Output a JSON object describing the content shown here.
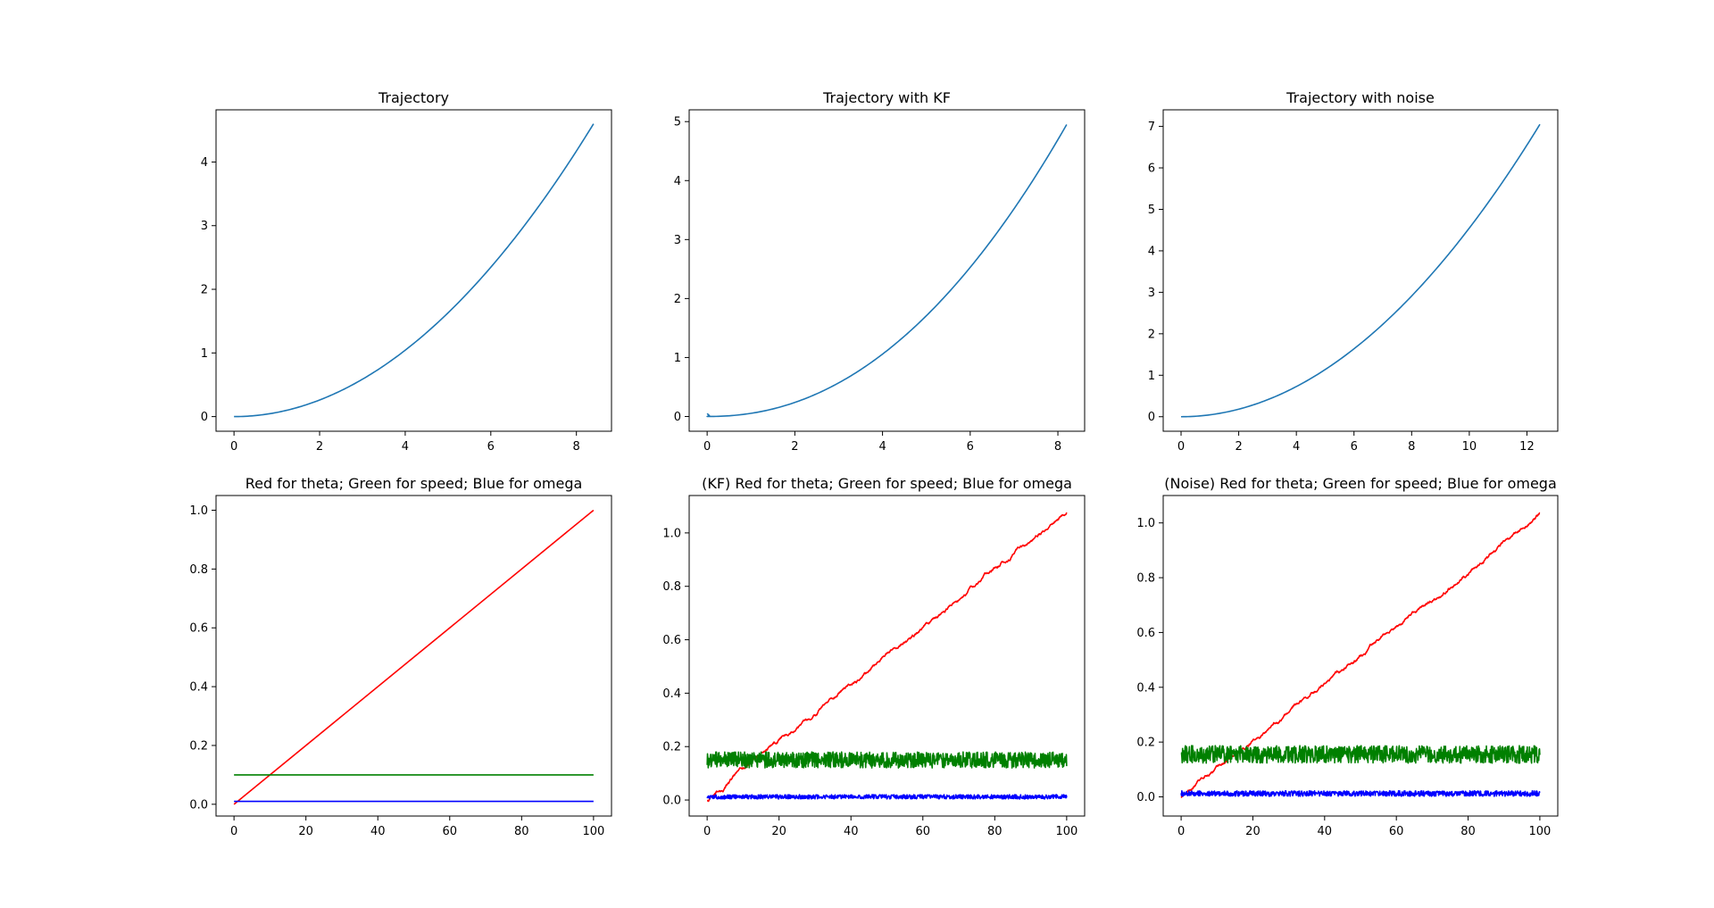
{
  "chart_data": [
    {
      "type": "line",
      "title": "Trajectory",
      "xlim": [
        -0.42,
        8.82
      ],
      "ylim": [
        -0.23,
        4.82
      ],
      "xticks": [
        0,
        2,
        4,
        6,
        8
      ],
      "yticks": [
        0,
        1,
        2,
        3,
        4
      ],
      "series": [
        {
          "color": "#1f77b4",
          "kind": "power",
          "x_end": 8.4,
          "y_end": 4.6,
          "exponent": 2,
          "noise": 0
        }
      ]
    },
    {
      "type": "line",
      "title": "Trajectory with KF",
      "xlim": [
        -0.41,
        8.61
      ],
      "ylim": [
        -0.25,
        5.2
      ],
      "xticks": [
        0,
        2,
        4,
        6,
        8
      ],
      "yticks": [
        0,
        1,
        2,
        3,
        4,
        5
      ],
      "series": [
        {
          "color": "#1f77b4",
          "kind": "power",
          "x_end": 8.2,
          "y_end": 4.95,
          "exponent": 2.15,
          "noise": 0,
          "start_hook": true
        }
      ]
    },
    {
      "type": "line",
      "title": "Trajectory with noise",
      "xlim": [
        -0.62,
        13.07
      ],
      "ylim": [
        -0.35,
        7.4
      ],
      "xticks": [
        0,
        2,
        4,
        6,
        8,
        10,
        12
      ],
      "yticks": [
        0,
        1,
        2,
        3,
        4,
        5,
        6,
        7
      ],
      "series": [
        {
          "color": "#1f77b4",
          "kind": "power",
          "x_end": 12.45,
          "y_end": 7.05,
          "exponent": 2,
          "noise": 0
        }
      ]
    },
    {
      "type": "line",
      "title": "Red for theta; Green for speed; Blue for omega",
      "xlim": [
        -5,
        105
      ],
      "ylim": [
        -0.04,
        1.05
      ],
      "xticks": [
        0,
        20,
        40,
        60,
        80,
        100
      ],
      "yticks": [
        0.0,
        0.2,
        0.4,
        0.6,
        0.8,
        1.0
      ],
      "series": [
        {
          "color": "#ff0000",
          "kind": "linear",
          "y0": 0.0,
          "y1": 1.0,
          "noise": 0
        },
        {
          "color": "#008000",
          "kind": "const",
          "y0": 0.1,
          "noise": 0
        },
        {
          "color": "#0000ff",
          "kind": "const",
          "y0": 0.01,
          "noise": 0
        }
      ]
    },
    {
      "type": "line",
      "title": "(KF) Red for theta; Green for speed; Blue for omega",
      "xlim": [
        -5,
        105
      ],
      "ylim": [
        -0.06,
        1.14
      ],
      "xticks": [
        0,
        20,
        40,
        60,
        80,
        100
      ],
      "yticks": [
        0.0,
        0.2,
        0.4,
        0.6,
        0.8,
        1.0
      ],
      "series": [
        {
          "color": "#ff0000",
          "kind": "linear",
          "y0": 0.0,
          "y1": 1.08,
          "noise": 0.006
        },
        {
          "color": "#008000",
          "kind": "const",
          "y0": 0.15,
          "noise": 0.03
        },
        {
          "color": "#0000ff",
          "kind": "const",
          "y0": 0.012,
          "noise": 0.008
        }
      ]
    },
    {
      "type": "line",
      "title": "(Noise) Red for theta; Green for speed; Blue for omega",
      "xlim": [
        -5,
        105
      ],
      "ylim": [
        -0.07,
        1.1
      ],
      "xticks": [
        0,
        20,
        40,
        60,
        80,
        100
      ],
      "yticks": [
        0.0,
        0.2,
        0.4,
        0.6,
        0.8,
        1.0
      ],
      "series": [
        {
          "color": "#ff0000",
          "kind": "linear",
          "y0": 0.0,
          "y1": 1.03,
          "noise": 0.006
        },
        {
          "color": "#008000",
          "kind": "const",
          "y0": 0.155,
          "noise": 0.032
        },
        {
          "color": "#0000ff",
          "kind": "const",
          "y0": 0.012,
          "noise": 0.01
        }
      ]
    }
  ]
}
